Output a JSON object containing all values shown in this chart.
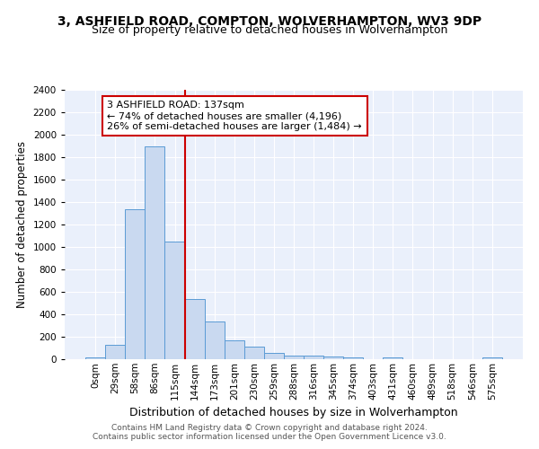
{
  "title": "3, ASHFIELD ROAD, COMPTON, WOLVERHAMPTON, WV3 9DP",
  "subtitle": "Size of property relative to detached houses in Wolverhampton",
  "xlabel": "Distribution of detached houses by size in Wolverhampton",
  "ylabel": "Number of detached properties",
  "bin_labels": [
    "0sqm",
    "29sqm",
    "58sqm",
    "86sqm",
    "115sqm",
    "144sqm",
    "173sqm",
    "201sqm",
    "230sqm",
    "259sqm",
    "288sqm",
    "316sqm",
    "345sqm",
    "374sqm",
    "403sqm",
    "431sqm",
    "460sqm",
    "489sqm",
    "518sqm",
    "546sqm",
    "575sqm"
  ],
  "bin_values": [
    20,
    130,
    1340,
    1900,
    1050,
    540,
    340,
    170,
    110,
    60,
    35,
    30,
    25,
    15,
    0,
    20,
    0,
    0,
    0,
    0,
    20
  ],
  "bar_color": "#c9d9f0",
  "bar_edge_color": "#5b9bd5",
  "vline_color": "#cc0000",
  "vline_position": 4.5,
  "annotation_text": "3 ASHFIELD ROAD: 137sqm\n← 74% of detached houses are smaller (4,196)\n26% of semi-detached houses are larger (1,484) →",
  "annotation_box_color": "white",
  "annotation_box_edge": "#cc0000",
  "ylim": [
    0,
    2400
  ],
  "yticks": [
    0,
    200,
    400,
    600,
    800,
    1000,
    1200,
    1400,
    1600,
    1800,
    2000,
    2200,
    2400
  ],
  "footer1": "Contains HM Land Registry data © Crown copyright and database right 2024.",
  "footer2": "Contains public sector information licensed under the Open Government Licence v3.0.",
  "background_color": "#eaf0fb",
  "grid_color": "white",
  "title_fontsize": 10,
  "subtitle_fontsize": 9,
  "ylabel_fontsize": 8.5,
  "xlabel_fontsize": 9,
  "tick_fontsize": 7.5,
  "annot_fontsize": 8,
  "footer_fontsize": 6.5
}
